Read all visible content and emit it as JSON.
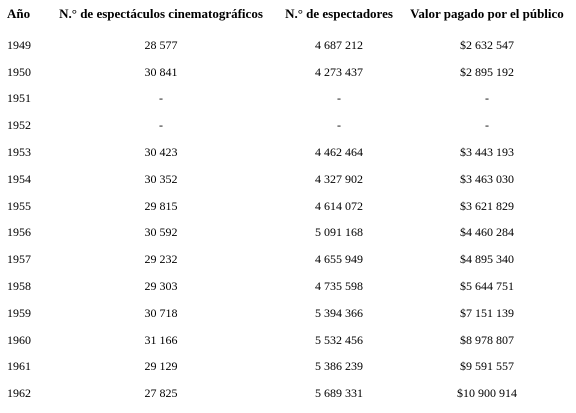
{
  "table": {
    "headers": [
      "Año",
      "N.° de espectáculos cinematográficos",
      "N.° de espectadores",
      "Valor pagado por el público"
    ],
    "rows": [
      [
        "1949",
        "28 577",
        "4 687 212",
        "$2 632 547"
      ],
      [
        "1950",
        "30 841",
        "4 273 437",
        "$2 895 192"
      ],
      [
        "1951",
        "-",
        "-",
        "-"
      ],
      [
        "1952",
        "-",
        "-",
        "-"
      ],
      [
        "1953",
        "30 423",
        "4 462 464",
        "$3 443 193"
      ],
      [
        "1954",
        "30 352",
        "4 327 902",
        "$3 463 030"
      ],
      [
        "1955",
        "29 815",
        "4 614 072",
        "$3 621 829"
      ],
      [
        "1956",
        "30 592",
        "5 091 168",
        "$4 460 284"
      ],
      [
        "1957",
        "29 232",
        "4 655 949",
        "$4 895 340"
      ],
      [
        "1958",
        "29 303",
        "4 735 598",
        "$5 644 751"
      ],
      [
        "1959",
        "30 718",
        "5 394 366",
        "$7 151 139"
      ],
      [
        "1960",
        "31 166",
        "5 532 456",
        "$8 978 807"
      ],
      [
        "1961",
        "29 129",
        "5 386 239",
        "$9 591 557"
      ],
      [
        "1962",
        "27 825",
        "5 689 331",
        "$10 900 914"
      ]
    ]
  }
}
